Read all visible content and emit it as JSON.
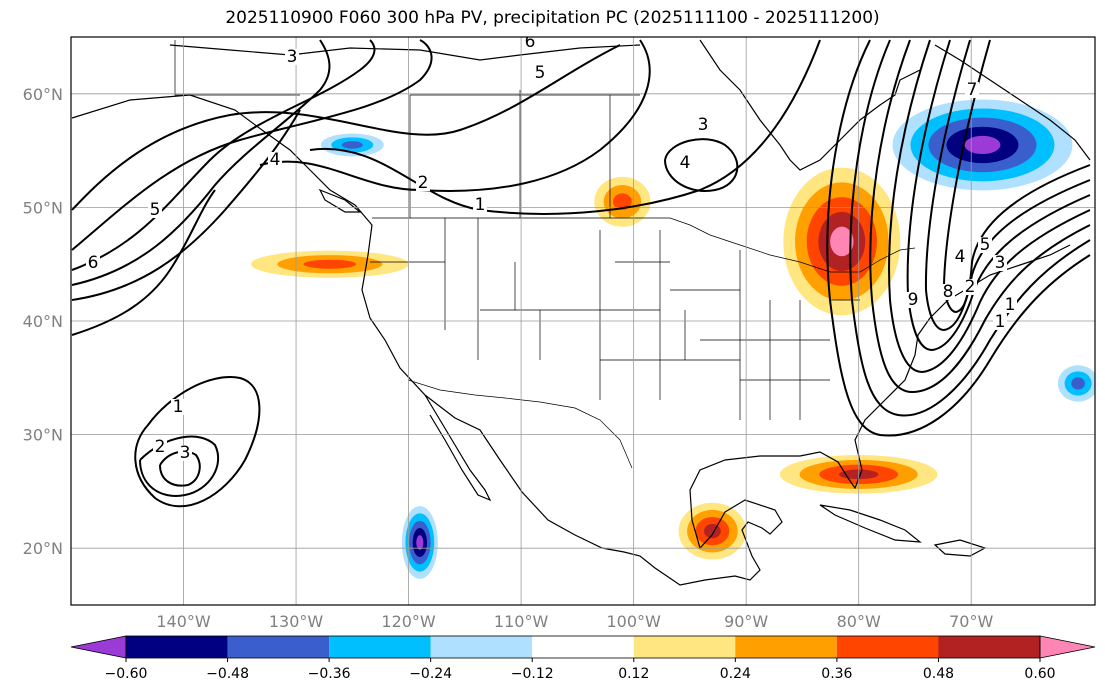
{
  "title": "2025110900 F060 300 hPa PV, precipitation PC (2025111100 - 2025111200)",
  "map": {
    "projection": "plate-carree",
    "lon_range": [
      -150,
      -59
    ],
    "lat_range": [
      15,
      65
    ],
    "lat_ticks": [
      {
        "v": 60,
        "label": "60°N"
      },
      {
        "v": 50,
        "label": "50°N"
      },
      {
        "v": 40,
        "label": "40°N"
      },
      {
        "v": 30,
        "label": "30°N"
      },
      {
        "v": 20,
        "label": "20°N"
      }
    ],
    "lon_ticks": [
      {
        "v": -140,
        "label": "140°W"
      },
      {
        "v": -130,
        "label": "130°W"
      },
      {
        "v": -120,
        "label": "120°W"
      },
      {
        "v": -110,
        "label": "110°W"
      },
      {
        "v": -100,
        "label": "100°W"
      },
      {
        "v": -90,
        "label": "90°W"
      },
      {
        "v": -80,
        "label": "80°W"
      },
      {
        "v": -70,
        "label": "70°W"
      }
    ],
    "grid": true
  },
  "colorbar": {
    "colors": [
      "#9b3ad6",
      "#000080",
      "#3a5fcd",
      "#00bfff",
      "#b0e0ff",
      "#ffffff",
      "#ffe680",
      "#ffa000",
      "#ff4500",
      "#b22222",
      "#ff85b5"
    ],
    "labels": [
      "−0.60",
      "−0.48",
      "−0.36",
      "−0.24",
      "−0.12",
      "0.12",
      "0.24",
      "0.36",
      "0.48",
      "0.60"
    ]
  },
  "pv_contour_labels": [
    "1",
    "2",
    "3",
    "1",
    "2",
    "3",
    "4",
    "5",
    "6",
    "1",
    "2",
    "3",
    "4",
    "5",
    "3",
    "4",
    "5",
    "6",
    "7",
    "8",
    "9",
    "1"
  ],
  "precip_fields": [
    {
      "name": "great-lakes-positive",
      "lon": -81.5,
      "lat": 47,
      "rx": 5.2,
      "ry": 6.5,
      "peak": 0.65
    },
    {
      "name": "quebec-negative",
      "lon": -69,
      "lat": 55.5,
      "rx": 8,
      "ry": 4,
      "peak": -0.65
    },
    {
      "name": "pacific-nw-positive",
      "lon": -127,
      "lat": 45,
      "rx": 7,
      "ry": 1.2,
      "peak": 0.42
    },
    {
      "name": "baja-negative",
      "lon": -119,
      "lat": 20.5,
      "rx": 1.6,
      "ry": 3.2,
      "peak": -0.62
    },
    {
      "name": "gulf-positive",
      "lon": -93,
      "lat": 21.5,
      "rx": 3,
      "ry": 2.5,
      "peak": 0.5
    },
    {
      "name": "florida-positive",
      "lon": -80,
      "lat": 26.5,
      "rx": 7,
      "ry": 1.7,
      "peak": 0.5
    },
    {
      "name": "saskatchewan-positive",
      "lon": -101,
      "lat": 50.5,
      "rx": 2.5,
      "ry": 2.2,
      "peak": 0.4
    },
    {
      "name": "atlantic-negative",
      "lon": -60.5,
      "lat": 34.5,
      "rx": 1.8,
      "ry": 1.6,
      "peak": -0.4
    },
    {
      "name": "alaska-negative",
      "lon": -125,
      "lat": 55.5,
      "rx": 2.8,
      "ry": 1,
      "peak": -0.4
    }
  ]
}
